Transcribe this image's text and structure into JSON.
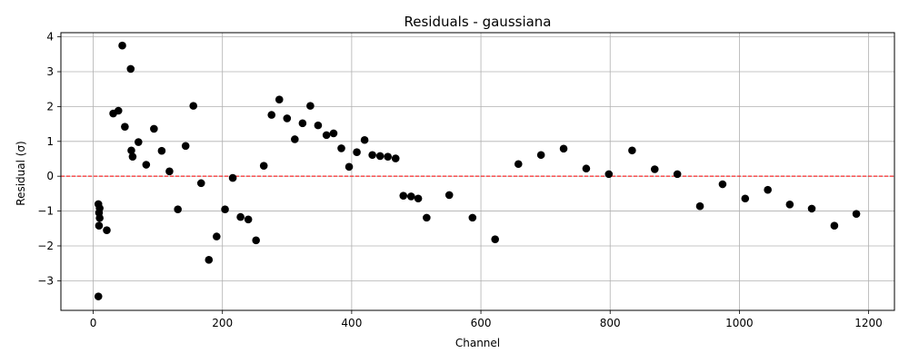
{
  "chart_data": {
    "type": "scatter",
    "title": "Residuals - gaussiana",
    "xlabel": "Channel",
    "ylabel": "Residual (σ)",
    "xlim": [
      -50,
      1240
    ],
    "ylim": [
      -3.85,
      4.12
    ],
    "xticks": [
      0,
      200,
      400,
      600,
      800,
      1000,
      1200
    ],
    "yticks": [
      -3,
      -2,
      -1,
      0,
      1,
      2,
      3,
      4
    ],
    "grid": true,
    "reference_line": {
      "y": 0,
      "style": "dashed",
      "color": "#ff0000"
    },
    "marker_color": "#000000",
    "points": [
      {
        "x": 8,
        "y": -3.45
      },
      {
        "x": 8,
        "y": -0.8
      },
      {
        "x": 9,
        "y": -1.05
      },
      {
        "x": 10,
        "y": -0.92
      },
      {
        "x": 10,
        "y": -1.2
      },
      {
        "x": 9,
        "y": -1.42
      },
      {
        "x": 21,
        "y": -1.55
      },
      {
        "x": 31,
        "y": 1.8
      },
      {
        "x": 39,
        "y": 1.88
      },
      {
        "x": 45,
        "y": 3.75
      },
      {
        "x": 49,
        "y": 1.42
      },
      {
        "x": 58,
        "y": 3.08
      },
      {
        "x": 59,
        "y": 0.74
      },
      {
        "x": 61,
        "y": 0.56
      },
      {
        "x": 70,
        "y": 0.98
      },
      {
        "x": 82,
        "y": 0.33
      },
      {
        "x": 94,
        "y": 1.36
      },
      {
        "x": 106,
        "y": 0.73
      },
      {
        "x": 118,
        "y": 0.14
      },
      {
        "x": 131,
        "y": -0.95
      },
      {
        "x": 143,
        "y": 0.87
      },
      {
        "x": 155,
        "y": 2.02
      },
      {
        "x": 167,
        "y": -0.2
      },
      {
        "x": 179,
        "y": -2.4
      },
      {
        "x": 191,
        "y": -1.73
      },
      {
        "x": 204,
        "y": -0.95
      },
      {
        "x": 216,
        "y": -0.05
      },
      {
        "x": 228,
        "y": -1.17
      },
      {
        "x": 240,
        "y": -1.24
      },
      {
        "x": 252,
        "y": -1.84
      },
      {
        "x": 264,
        "y": 0.3
      },
      {
        "x": 276,
        "y": 1.76
      },
      {
        "x": 288,
        "y": 2.2
      },
      {
        "x": 300,
        "y": 1.66
      },
      {
        "x": 312,
        "y": 1.06
      },
      {
        "x": 324,
        "y": 1.52
      },
      {
        "x": 336,
        "y": 2.02
      },
      {
        "x": 348,
        "y": 1.46
      },
      {
        "x": 361,
        "y": 1.18
      },
      {
        "x": 372,
        "y": 1.23
      },
      {
        "x": 384,
        "y": 0.8
      },
      {
        "x": 396,
        "y": 0.27
      },
      {
        "x": 408,
        "y": 0.69
      },
      {
        "x": 420,
        "y": 1.04
      },
      {
        "x": 432,
        "y": 0.61
      },
      {
        "x": 444,
        "y": 0.58
      },
      {
        "x": 456,
        "y": 0.56
      },
      {
        "x": 468,
        "y": 0.51
      },
      {
        "x": 480,
        "y": -0.56
      },
      {
        "x": 492,
        "y": -0.58
      },
      {
        "x": 503,
        "y": -0.64
      },
      {
        "x": 516,
        "y": -1.19
      },
      {
        "x": 551,
        "y": -0.54
      },
      {
        "x": 587,
        "y": -1.19
      },
      {
        "x": 622,
        "y": -1.81
      },
      {
        "x": 658,
        "y": 0.35
      },
      {
        "x": 693,
        "y": 0.61
      },
      {
        "x": 728,
        "y": 0.79
      },
      {
        "x": 763,
        "y": 0.22
      },
      {
        "x": 798,
        "y": 0.06
      },
      {
        "x": 834,
        "y": 0.74
      },
      {
        "x": 869,
        "y": 0.2
      },
      {
        "x": 904,
        "y": 0.06
      },
      {
        "x": 939,
        "y": -0.86
      },
      {
        "x": 974,
        "y": -0.23
      },
      {
        "x": 1009,
        "y": -0.64
      },
      {
        "x": 1044,
        "y": -0.39
      },
      {
        "x": 1078,
        "y": -0.81
      },
      {
        "x": 1112,
        "y": -0.93
      },
      {
        "x": 1147,
        "y": -1.42
      },
      {
        "x": 1181,
        "y": -1.08
      }
    ]
  }
}
